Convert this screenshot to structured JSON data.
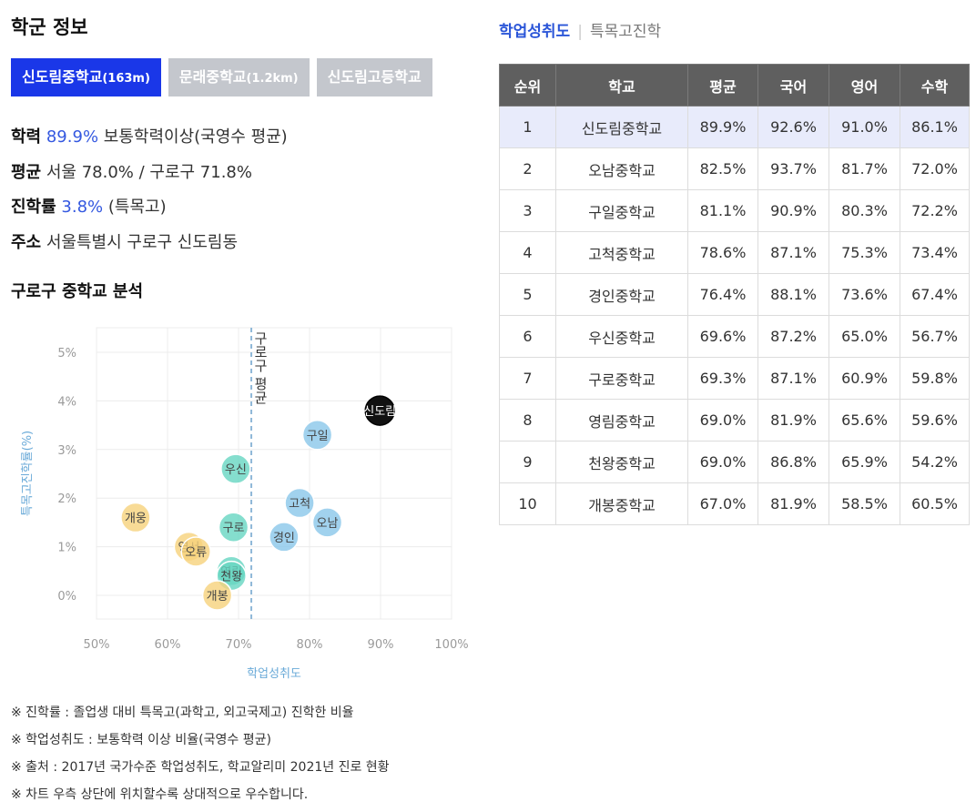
{
  "title": "학군 정보",
  "school_tabs": [
    {
      "name": "신도림중학교",
      "dist": "(163m)",
      "active": true
    },
    {
      "name": "문래중학교",
      "dist": "(1.2km)",
      "active": false
    },
    {
      "name": "신도림고등학교",
      "dist": "",
      "active": false
    }
  ],
  "info": {
    "achievement": {
      "label": "학력",
      "value": "89.9%",
      "suffix": "보통학력이상(국영수 평균)"
    },
    "average": {
      "label": "평균",
      "text": "서울 78.0% / 구로구 71.8%"
    },
    "advance": {
      "label": "진학률",
      "value": "3.8%",
      "suffix": "(특목고)"
    },
    "address": {
      "label": "주소",
      "text": "서울특별시 구로구 신도림동"
    }
  },
  "section_title": "구로구 중학교 분석",
  "chart_data": {
    "type": "scatter",
    "xlabel": "학업성취도",
    "ylabel": "특목고진학률(%)",
    "xlim": [
      50,
      100
    ],
    "ylim": [
      0,
      5
    ],
    "x_ticks": [
      "50%",
      "60%",
      "70%",
      "80%",
      "90%",
      "100%"
    ],
    "y_ticks": [
      "0%",
      "1%",
      "2%",
      "3%",
      "4%",
      "5%"
    ],
    "reference_line": {
      "x": 71.8,
      "label": "구로구 평균"
    },
    "points": [
      {
        "label": "신도림",
        "x": 89.9,
        "y": 3.8,
        "color": "#111111"
      },
      {
        "label": "구일",
        "x": 81.1,
        "y": 3.3,
        "color": "#8ac7ea"
      },
      {
        "label": "고척",
        "x": 78.6,
        "y": 1.9,
        "color": "#8ac7ea"
      },
      {
        "label": "오남",
        "x": 82.5,
        "y": 1.5,
        "color": "#8ac7ea"
      },
      {
        "label": "경인",
        "x": 76.4,
        "y": 1.2,
        "color": "#8ac7ea"
      },
      {
        "label": "우신",
        "x": 69.6,
        "y": 2.6,
        "color": "#67d6c2"
      },
      {
        "label": "구로",
        "x": 69.3,
        "y": 1.4,
        "color": "#67d6c2"
      },
      {
        "label": "영림",
        "x": 69.0,
        "y": 0.5,
        "color": "#67d6c2"
      },
      {
        "label": "천왕",
        "x": 69.0,
        "y": 0.4,
        "color": "#67d6c2"
      },
      {
        "label": "개웅",
        "x": 55.5,
        "y": 1.6,
        "color": "#f6d27c"
      },
      {
        "label": "영서",
        "x": 63.0,
        "y": 1.0,
        "color": "#f6d27c"
      },
      {
        "label": "오류",
        "x": 64.0,
        "y": 0.9,
        "color": "#f6d27c"
      },
      {
        "label": "개봉",
        "x": 67.0,
        "y": 0.0,
        "color": "#f6d27c"
      }
    ]
  },
  "notes": [
    "※ 진학률 : 졸업생 대비 특목고(과학고, 외고국제고) 진학한 비율",
    "※ 학업성취도 : 보통학력 이상 비율(국영수 평균)",
    "※ 출처 : 2017년 국가수준 학업성취도, 학교알리미 2021년 진로 현황",
    "※ 차트 우측 상단에 위치할수록 상대적으로 우수합니다."
  ],
  "right_tabs": [
    {
      "label": "학업성취도",
      "active": true
    },
    {
      "label": "특목고진학",
      "active": false
    }
  ],
  "table": {
    "headers": [
      "순위",
      "학교",
      "평균",
      "국어",
      "영어",
      "수학"
    ],
    "rows": [
      [
        "1",
        "신도림중학교",
        "89.9%",
        "92.6%",
        "91.0%",
        "86.1%"
      ],
      [
        "2",
        "오남중학교",
        "82.5%",
        "93.7%",
        "81.7%",
        "72.0%"
      ],
      [
        "3",
        "구일중학교",
        "81.1%",
        "90.9%",
        "80.3%",
        "72.2%"
      ],
      [
        "4",
        "고척중학교",
        "78.6%",
        "87.1%",
        "75.3%",
        "73.4%"
      ],
      [
        "5",
        "경인중학교",
        "76.4%",
        "88.1%",
        "73.6%",
        "67.4%"
      ],
      [
        "6",
        "우신중학교",
        "69.6%",
        "87.2%",
        "65.0%",
        "56.7%"
      ],
      [
        "7",
        "구로중학교",
        "69.3%",
        "87.1%",
        "60.9%",
        "59.8%"
      ],
      [
        "8",
        "영림중학교",
        "69.0%",
        "81.9%",
        "65.6%",
        "59.6%"
      ],
      [
        "9",
        "천왕중학교",
        "69.0%",
        "86.8%",
        "65.9%",
        "54.2%"
      ],
      [
        "10",
        "개봉중학교",
        "67.0%",
        "81.9%",
        "58.5%",
        "60.5%"
      ]
    ]
  }
}
